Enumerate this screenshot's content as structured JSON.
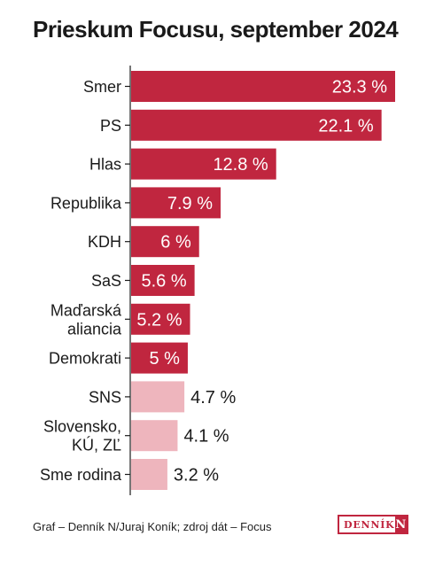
{
  "title": "Prieskum Focusu, september 2024",
  "footer": {
    "source": "Graf – Denník N/Juraj Koník; zdroj dát – Focus",
    "logo_text": "DENNÍK",
    "logo_letter": "N"
  },
  "colors": {
    "strong": "#c0263f",
    "light": "#eeb5bd",
    "axis": "#1a1a1a"
  },
  "chart_data": {
    "type": "bar",
    "orientation": "horizontal",
    "title": "Prieskum Focusu, september 2024",
    "categories": [
      [
        "Smer"
      ],
      [
        "PS"
      ],
      [
        "Hlas"
      ],
      [
        "Republika"
      ],
      [
        "KDH"
      ],
      [
        "SaS"
      ],
      [
        "Maďarská",
        "aliancia"
      ],
      [
        "Demokrati"
      ],
      [
        "SNS"
      ],
      [
        "Slovensko,",
        "KÚ, ZĽ"
      ],
      [
        "Sme rodina"
      ]
    ],
    "values": [
      23.3,
      22.1,
      12.8,
      7.9,
      6,
      5.6,
      5.2,
      5,
      4.7,
      4.1,
      3.2
    ],
    "value_labels": [
      "23.3 %",
      "22.1 %",
      "12.8 %",
      "7.9 %",
      "6 %",
      "5.6 %",
      "5.2 %",
      "5 %",
      "4.7 %",
      "4.1 %",
      "3.2 %"
    ],
    "highlight": [
      true,
      true,
      true,
      true,
      true,
      true,
      true,
      true,
      false,
      false,
      false
    ],
    "xlim": [
      0,
      23.3
    ],
    "grid": false,
    "legend": "none"
  }
}
